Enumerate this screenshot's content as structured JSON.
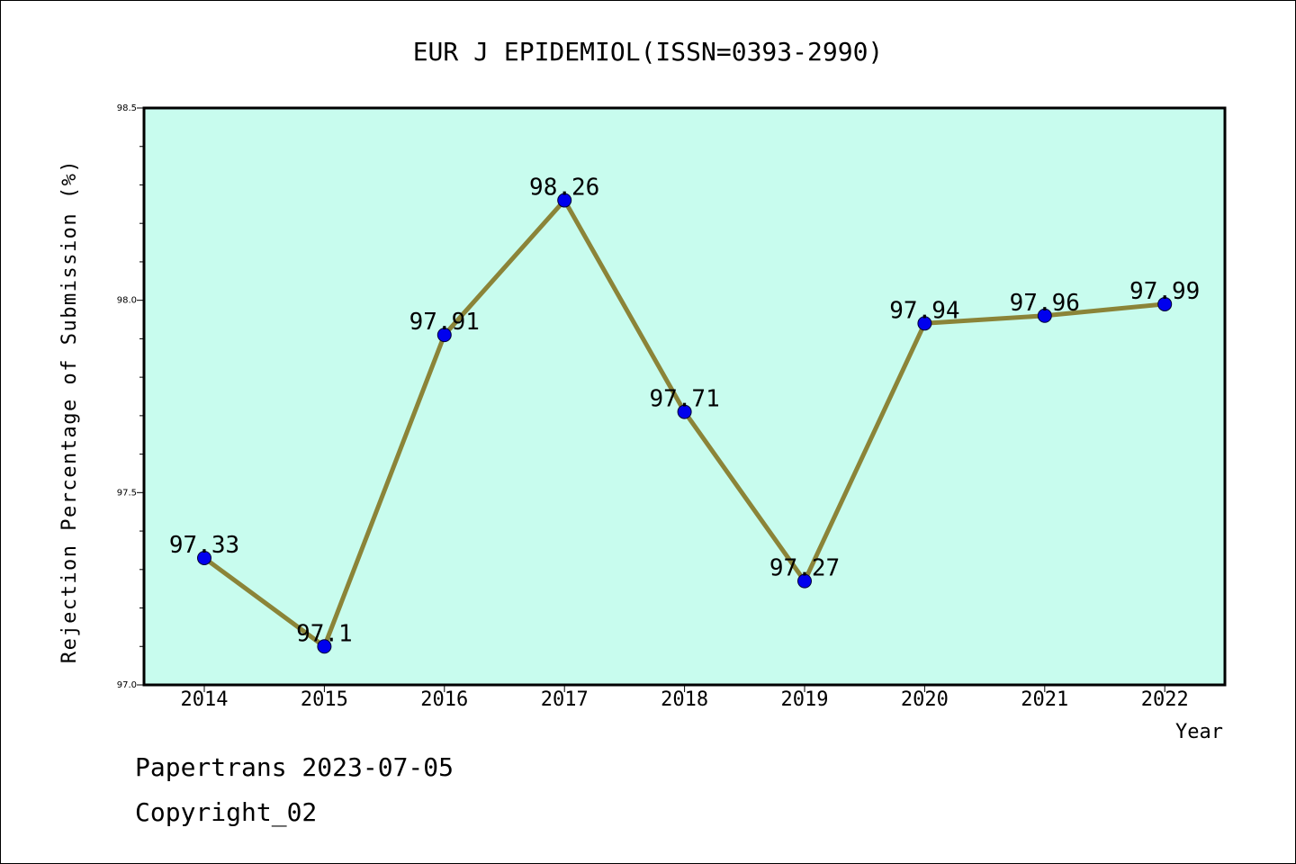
{
  "chart_data": {
    "type": "line",
    "title": "EUR J EPIDEMIOL(ISSN=0393-2990)",
    "xlabel": "Year",
    "ylabel": "Rejection Percentage of Submission (%)",
    "categories": [
      "2014",
      "2015",
      "2016",
      "2017",
      "2018",
      "2019",
      "2020",
      "2021",
      "2022"
    ],
    "series": [
      {
        "values": [
          97.33,
          97.1,
          97.91,
          98.26,
          97.71,
          97.27,
          97.94,
          97.96,
          97.99
        ]
      }
    ],
    "data_labels": [
      "97.33",
      "97.1",
      "97.91",
      "98.26",
      "97.71",
      "97.27",
      "97.94",
      "97.96",
      "97.99"
    ],
    "ylim": [
      97.0,
      98.5
    ],
    "yticks": [
      "97.0",
      "97.5",
      "98.0",
      "98.5"
    ],
    "grid": false,
    "colors": {
      "plot_background": "#c8fcee",
      "line": "#8b8438",
      "marker": "#0000ee"
    }
  },
  "footer": {
    "line1": "Papertrans 2023-07-05",
    "line2": "Copyright_02"
  }
}
